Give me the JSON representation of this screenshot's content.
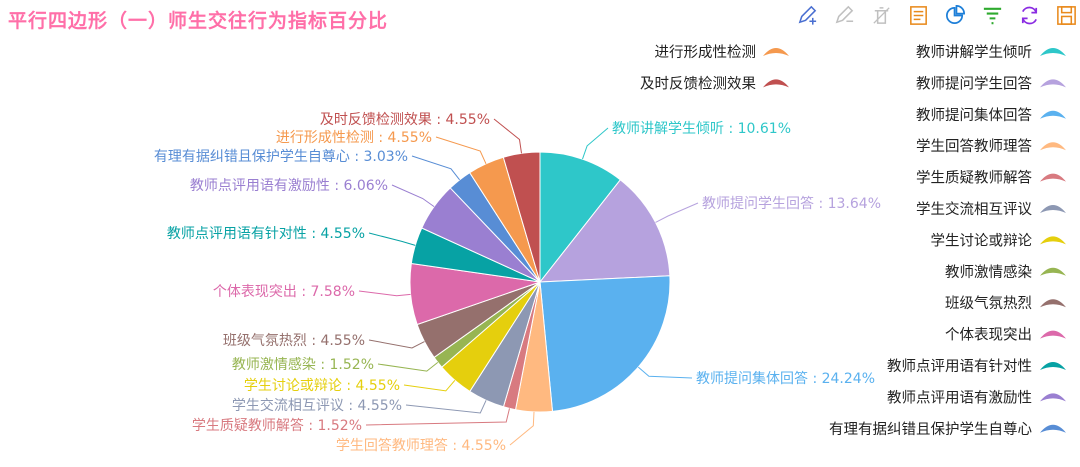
{
  "title": "平行四边形（一）师生交往行为指标百分比",
  "toolbox": [
    {
      "name": "mark-icon",
      "color": "#4a6fd1"
    },
    {
      "name": "mark-undo-icon",
      "color": "#c0c0c0"
    },
    {
      "name": "mark-clear-icon",
      "color": "#c0c0c0"
    },
    {
      "name": "data-view-icon",
      "color": "#e98a1c"
    },
    {
      "name": "pie-chart-icon",
      "color": "#1e7fd8"
    },
    {
      "name": "filter-icon",
      "color": "#2eaa2e"
    },
    {
      "name": "refresh-icon",
      "color": "#8a2be2"
    },
    {
      "name": "save-icon",
      "color": "#e98a1c"
    }
  ],
  "chart_data": {
    "type": "pie",
    "title": "平行四边形（一）师生交往行为指标百分比",
    "legend_position": "right",
    "slices": [
      {
        "name": "教师讲解学生倾听",
        "value": 10.61,
        "label": "教师讲解学生倾听 : 10.61%",
        "color": "#2ec7c9"
      },
      {
        "name": "教师提问学生回答",
        "value": 13.64,
        "label": "教师提问学生回答 : 13.64%",
        "color": "#b6a2de"
      },
      {
        "name": "教师提问集体回答",
        "value": 24.24,
        "label": "教师提问集体回答 : 24.24%",
        "color": "#5ab1ef"
      },
      {
        "name": "学生回答教师理答",
        "value": 4.55,
        "label": "学生回答教师理答 : 4.55%",
        "color": "#ffb980"
      },
      {
        "name": "学生质疑教师解答",
        "value": 1.52,
        "label": "学生质疑教师解答 : 1.52%",
        "color": "#d87a80"
      },
      {
        "name": "学生交流相互评议",
        "value": 4.55,
        "label": "学生交流相互评议 : 4.55%",
        "color": "#8d98b3"
      },
      {
        "name": "学生讨论或辩论",
        "value": 4.55,
        "label": "学生讨论或辩论 : 4.55%",
        "color": "#e5cf0d"
      },
      {
        "name": "教师激情感染",
        "value": 1.52,
        "label": "教师激情感染 : 1.52%",
        "color": "#97b552"
      },
      {
        "name": "班级气氛热烈",
        "value": 4.55,
        "label": "班级气氛热烈 : 4.55%",
        "color": "#95706d"
      },
      {
        "name": "个体表现突出",
        "value": 7.58,
        "label": "个体表现突出 : 7.58%",
        "color": "#dc69aa"
      },
      {
        "name": "教师点评用语有针对性",
        "value": 4.55,
        "label": "教师点评用语有针对性 : 4.55%",
        "color": "#07a2a4"
      },
      {
        "name": "教师点评用语有激励性",
        "value": 6.06,
        "label": "教师点评用语有激励性 : 6.06%",
        "color": "#9a7fd1"
      },
      {
        "name": "有理有据纠错且保护学生自尊心",
        "value": 3.03,
        "label": "有理有据纠错且保护学生自尊心 : 3.03%",
        "color": "#588dd5"
      },
      {
        "name": "进行形成性检测",
        "value": 4.55,
        "label": "进行形成性检测 : 4.55%",
        "color": "#f5994e"
      },
      {
        "name": "及时反馈检测效果",
        "value": 4.55,
        "label": "及时反馈检测效果 : 4.55%",
        "color": "#c05050"
      }
    ]
  }
}
